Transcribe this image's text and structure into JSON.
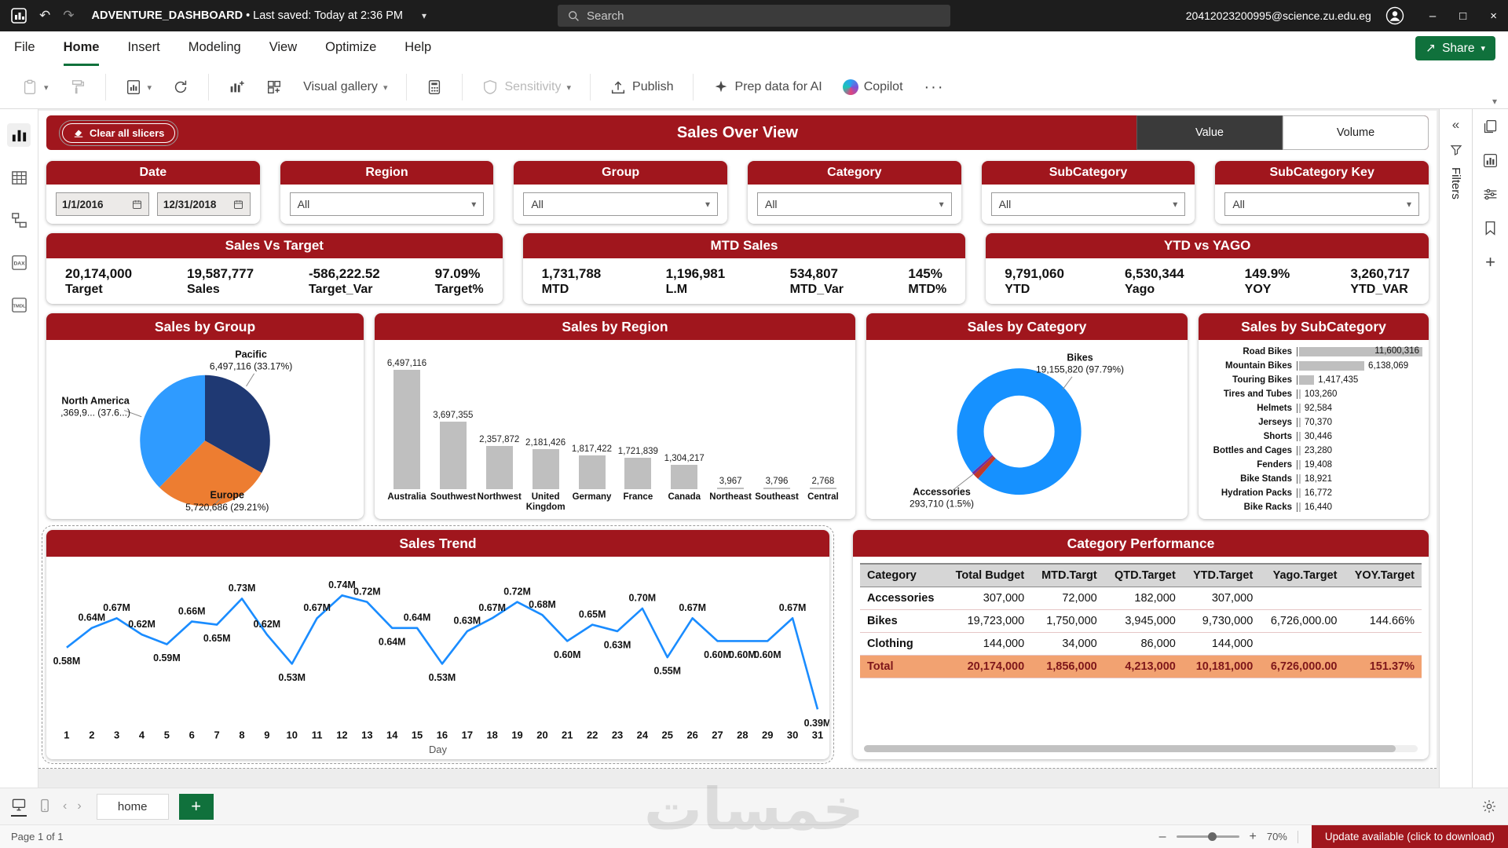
{
  "glyphs": {
    "chevron_down": "▾",
    "undo": "↶",
    "redo": "↷",
    "more": "···",
    "minimize": "–",
    "maximize": "□",
    "close": "×",
    "collapse_left": "«",
    "nav_left": "‹",
    "nav_right": "›",
    "plus": "+",
    "share_arrow": "↗"
  },
  "titlebar": {
    "app_title": "ADVENTURE_DASHBOARD",
    "saved_text": "• Last saved: Today at 2:36 PM",
    "search_placeholder": "Search",
    "account_email": "20412023200995@science.zu.edu.eg"
  },
  "menubar": {
    "items": [
      "File",
      "Home",
      "Insert",
      "Modeling",
      "View",
      "Optimize",
      "Help"
    ],
    "active": "Home",
    "share_label": "Share"
  },
  "ribbon": {
    "visual_gallery_label": "Visual gallery",
    "sensitivity_label": "Sensitivity",
    "publish_label": "Publish",
    "prep_ai_label": "Prep data for AI",
    "copilot_label": "Copilot"
  },
  "left_rail": {
    "dax_label": "DAX",
    "tmdl_label": "TMDL"
  },
  "right_rail": {
    "filters_label": "Filters"
  },
  "dashboard": {
    "clear_slicers_label": "Clear all slicers",
    "title": "Sales Over View",
    "toggle": [
      "Value",
      "Volume"
    ],
    "slicers": [
      {
        "label": "Date",
        "from": "1/1/2016",
        "to": "12/31/2018"
      },
      {
        "label": "Region",
        "value": "All"
      },
      {
        "label": "Group",
        "value": "All"
      },
      {
        "label": "Category",
        "value": "All"
      },
      {
        "label": "SubCategory",
        "value": "All"
      },
      {
        "label": "SubCategory Key",
        "value": "All"
      }
    ],
    "kpi_cards": [
      {
        "title": "Sales Vs Target",
        "metrics": [
          {
            "value": "20,174,000",
            "label": "Target"
          },
          {
            "value": "19,587,777",
            "label": "Sales"
          },
          {
            "value": "-586,222.52",
            "label": "Target_Var"
          },
          {
            "value": "97.09%",
            "label": "Target%"
          }
        ]
      },
      {
        "title": "MTD Sales",
        "metrics": [
          {
            "value": "1,731,788",
            "label": "MTD"
          },
          {
            "value": "1,196,981",
            "label": "L.M"
          },
          {
            "value": "534,807",
            "label": "MTD_Var"
          },
          {
            "value": "145%",
            "label": "MTD%"
          }
        ]
      },
      {
        "title": "YTD vs YAGO",
        "metrics": [
          {
            "value": "9,791,060",
            "label": "YTD"
          },
          {
            "value": "6,530,344",
            "label": "Yago"
          },
          {
            "value": "149.9%",
            "label": "YOY"
          },
          {
            "value": "3,260,717",
            "label": "YTD_VAR"
          }
        ]
      }
    ]
  },
  "chart_data": [
    {
      "id": "sales_by_group",
      "type": "pie",
      "title": "Sales by Group",
      "slices": [
        {
          "label": "Pacific",
          "value_text": "6,497,116 (33.17%)",
          "pct": 33.17,
          "color": "#1F3973"
        },
        {
          "label": "Europe",
          "value_text": "5,720,686 (29.21%)",
          "pct": 29.21,
          "color": "#ED7D31"
        },
        {
          "label": "North America",
          "value_text": ",369,9... (37.6...)",
          "pct": 37.62,
          "color": "#2F9BFF"
        }
      ]
    },
    {
      "id": "sales_by_region",
      "type": "bar",
      "title": "Sales by Region",
      "categories": [
        "Australia",
        "Southwest",
        "Northwest",
        "United Kingdom",
        "Germany",
        "France",
        "Canada",
        "Northeast",
        "Southeast",
        "Central"
      ],
      "values": [
        6497116,
        3697355,
        2357872,
        2181426,
        1817422,
        1721839,
        1304217,
        3967,
        3796,
        2768
      ],
      "value_labels": [
        "6,497,116",
        "3,697,355",
        "2,357,872",
        "2,181,426",
        "1,817,422",
        "1,721,839",
        "1,304,217",
        "3,967",
        "3,796",
        "2,768"
      ],
      "bar_color": "#BFBFBF"
    },
    {
      "id": "sales_by_category",
      "type": "donut",
      "title": "Sales by Category",
      "slices": [
        {
          "label": "Bikes",
          "value_text": "19,155,820 (97.79%)",
          "pct": 97.79,
          "color": "#1691FF"
        },
        {
          "label": "Accessories",
          "value_text": "293,710 (1.5%)",
          "pct": 1.5,
          "color": "#C0392B"
        },
        {
          "label": "",
          "value_text": "",
          "pct": 0.71,
          "color": "#7030A0"
        }
      ]
    },
    {
      "id": "sales_by_subcategory",
      "type": "hbar",
      "title": "Sales by SubCategory",
      "categories": [
        "Road Bikes",
        "Mountain Bikes",
        "Touring Bikes",
        "Tires and Tubes",
        "Helmets",
        "Jerseys",
        "Shorts",
        "Bottles and Cages",
        "Fenders",
        "Bike Stands",
        "Hydration Packs",
        "Bike Racks"
      ],
      "values": [
        11600316,
        6138069,
        1417435,
        103260,
        92584,
        70370,
        30446,
        23280,
        19408,
        18921,
        16772,
        16440
      ],
      "value_labels": [
        "11,600,316",
        "6,138,069",
        "1,417,435",
        "103,260",
        "92,584",
        "70,370",
        "30,446",
        "23,280",
        "19,408",
        "18,921",
        "16,772",
        "16,440"
      ],
      "bar_color": "#BFBFBF"
    },
    {
      "id": "sales_trend",
      "type": "line",
      "title": "Sales Trend",
      "xlabel": "Day",
      "line_color": "#1A8CFF",
      "x": [
        1,
        2,
        3,
        4,
        5,
        6,
        7,
        8,
        9,
        10,
        11,
        12,
        13,
        14,
        15,
        16,
        17,
        18,
        19,
        20,
        21,
        22,
        23,
        24,
        25,
        26,
        27,
        28,
        29,
        30,
        31
      ],
      "values": [
        0.58,
        0.64,
        0.67,
        0.62,
        0.59,
        0.66,
        0.65,
        0.73,
        0.62,
        0.53,
        0.67,
        0.74,
        0.72,
        0.64,
        0.64,
        0.53,
        0.63,
        0.67,
        0.72,
        0.68,
        0.6,
        0.65,
        0.63,
        0.7,
        0.55,
        0.67,
        0.6,
        0.6,
        0.6,
        0.67,
        0.39
      ],
      "labels": [
        "0.58M",
        "0.64M",
        "0.67M",
        "0.62M",
        "0.59M",
        "0.66M",
        "0.65M",
        "0.73M",
        "0.62M",
        "0.53M",
        "0.67M",
        "0.74M",
        "0.72M",
        "0.64M",
        "0.64M",
        "0.53M",
        "0.63M",
        "0.67M",
        "0.72M",
        "0.68M",
        "0.60M",
        "0.65M",
        "0.63M",
        "0.70M",
        "0.55M",
        "0.67M",
        "0.60M",
        "0.60M",
        "0.60M",
        "0.67M",
        "0.39M"
      ],
      "ylim": [
        0.36,
        0.78
      ]
    },
    {
      "id": "category_performance",
      "type": "table",
      "title": "Category Performance",
      "columns": [
        "Category",
        "Total Budget",
        "MTD.Targt",
        "QTD.Target",
        "YTD.Target",
        "Yago.Target",
        "YOY.Target"
      ],
      "rows": [
        [
          "Accessories",
          "307,000",
          "72,000",
          "182,000",
          "307,000",
          "",
          ""
        ],
        [
          "Bikes",
          "19,723,000",
          "1,750,000",
          "3,945,000",
          "9,730,000",
          "6,726,000.00",
          "144.66%"
        ],
        [
          "Clothing",
          "144,000",
          "34,000",
          "86,000",
          "144,000",
          "",
          ""
        ],
        [
          "Total",
          "20,174,000",
          "1,856,000",
          "4,213,000",
          "10,181,000",
          "6,726,000.00",
          "151.37%"
        ]
      ]
    }
  ],
  "footer": {
    "tab_label": "home",
    "page_label": "Page 1 of 1",
    "zoom_label": "70%",
    "update_label": "Update available (click to download)"
  },
  "watermark": "خمسات"
}
